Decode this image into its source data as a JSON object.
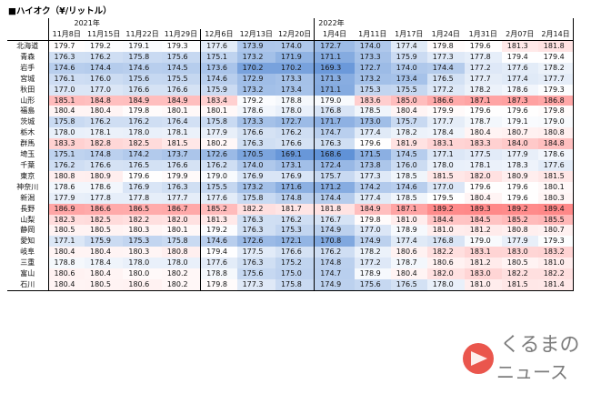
{
  "title": "■ハイオク（¥/リットル）",
  "year_labels": {
    "y2021": "2021年",
    "y2022": "2022年"
  },
  "dates": [
    "11月8日",
    "11月15日",
    "11月22日",
    "11月29日",
    "12月6日",
    "12月13日",
    "12月20日",
    "1月4日",
    "1月11日",
    "1月17日",
    "1月24日",
    "1月31日",
    "2月07日",
    "2月14日"
  ],
  "prefectures": [
    {
      "name": "北海道",
      "values": [
        179.7,
        179.2,
        179.1,
        179.3,
        177.6,
        173.9,
        174.0,
        172.7,
        174.0,
        177.4,
        179.8,
        179.6,
        181.3,
        181.8
      ]
    },
    {
      "name": "青森",
      "values": [
        176.3,
        176.2,
        175.8,
        175.6,
        175.1,
        173.2,
        171.9,
        171.1,
        173.3,
        175.9,
        177.3,
        177.8,
        179.4,
        179.4
      ]
    },
    {
      "name": "岩手",
      "values": [
        174.6,
        174.4,
        174.6,
        174.5,
        173.6,
        170.2,
        170.2,
        169.3,
        172.7,
        174.0,
        174.4,
        177.2,
        177.6,
        178.2
      ]
    },
    {
      "name": "宮城",
      "values": [
        176.1,
        176.0,
        175.6,
        175.5,
        174.6,
        172.9,
        173.3,
        171.3,
        173.2,
        173.4,
        176.5,
        177.7,
        177.4,
        177.7
      ]
    },
    {
      "name": "秋田",
      "values": [
        177.0,
        177.0,
        176.6,
        176.6,
        175.9,
        173.2,
        173.4,
        171.1,
        175.3,
        175.5,
        177.2,
        178.2,
        178.6,
        179.3
      ]
    },
    {
      "name": "山形",
      "values": [
        185.1,
        184.8,
        184.9,
        184.9,
        183.4,
        179.2,
        178.8,
        179.0,
        183.6,
        185.0,
        186.6,
        187.1,
        187.3,
        186.8
      ]
    },
    {
      "name": "福島",
      "values": [
        180.4,
        180.4,
        179.8,
        180.1,
        180.1,
        178.6,
        178.0,
        176.8,
        178.5,
        180.4,
        179.9,
        179.6,
        179.6,
        179.8
      ]
    },
    {
      "name": "茨城",
      "values": [
        175.8,
        176.2,
        176.2,
        176.4,
        175.8,
        173.3,
        172.7,
        171.7,
        173.0,
        175.7,
        177.7,
        178.7,
        179.1,
        179.0
      ]
    },
    {
      "name": "栃木",
      "values": [
        178.0,
        178.1,
        178.0,
        178.1,
        177.9,
        176.6,
        176.2,
        174.7,
        177.4,
        178.2,
        178.4,
        180.4,
        180.7,
        180.8
      ]
    },
    {
      "name": "群馬",
      "values": [
        183.3,
        182.8,
        182.5,
        181.5,
        180.2,
        176.3,
        176.6,
        176.3,
        179.6,
        181.9,
        183.1,
        183.3,
        184.0,
        184.8
      ]
    },
    {
      "name": "埼玉",
      "values": [
        175.1,
        174.8,
        174.2,
        173.7,
        172.6,
        170.5,
        169.1,
        168.6,
        171.5,
        174.5,
        177.1,
        177.5,
        177.9,
        178.6
      ]
    },
    {
      "name": "千葉",
      "values": [
        176.2,
        176.6,
        176.5,
        176.6,
        176.2,
        174.0,
        173.1,
        172.4,
        173.8,
        176.0,
        178.0,
        178.1,
        178.3,
        177.6
      ]
    },
    {
      "name": "東京",
      "values": [
        180.8,
        180.9,
        179.6,
        179.9,
        179.0,
        176.9,
        176.9,
        175.7,
        177.3,
        178.5,
        181.5,
        182.0,
        180.9,
        181.5
      ]
    },
    {
      "name": "神奈川",
      "values": [
        178.6,
        178.6,
        176.9,
        176.3,
        175.5,
        173.2,
        171.6,
        171.2,
        174.2,
        174.6,
        177.0,
        179.6,
        179.6,
        180.1
      ]
    },
    {
      "name": "新潟",
      "values": [
        177.9,
        177.8,
        177.8,
        177.7,
        177.6,
        175.8,
        174.8,
        174.4,
        177.4,
        178.5,
        179.5,
        180.4,
        179.6,
        180.3
      ]
    },
    {
      "name": "長野",
      "values": [
        186.9,
        186.6,
        186.5,
        186.7,
        185.2,
        182.2,
        181.7,
        181.8,
        184.9,
        187.1,
        189.2,
        189.3,
        189.2,
        189.4
      ]
    },
    {
      "name": "山梨",
      "values": [
        182.3,
        182.5,
        182.2,
        182.0,
        181.3,
        176.3,
        176.2,
        176.7,
        179.8,
        181.0,
        184.4,
        184.5,
        185.2,
        185.5
      ]
    },
    {
      "name": "静岡",
      "values": [
        180.5,
        180.5,
        180.3,
        180.1,
        179.2,
        176.3,
        175.3,
        174.9,
        177.0,
        178.9,
        181.0,
        181.2,
        180.8,
        180.7
      ]
    },
    {
      "name": "愛知",
      "values": [
        177.1,
        175.9,
        175.3,
        175.8,
        174.6,
        172.6,
        172.1,
        170.8,
        174.9,
        177.4,
        176.8,
        179.0,
        177.9,
        179.3
      ]
    },
    {
      "name": "岐阜",
      "values": [
        180.4,
        180.4,
        180.3,
        180.8,
        179.4,
        177.5,
        176.6,
        176.2,
        178.2,
        180.6,
        182.2,
        183.1,
        183.0,
        183.2
      ]
    },
    {
      "name": "三重",
      "values": [
        178.8,
        178.4,
        178.0,
        178.0,
        177.6,
        176.3,
        175.2,
        174.8,
        177.2,
        178.7,
        180.6,
        181.2,
        180.5,
        181.0
      ]
    },
    {
      "name": "富山",
      "values": [
        180.6,
        180.4,
        180.0,
        180.2,
        178.8,
        175.6,
        175.0,
        174.7,
        178.9,
        180.4,
        182.0,
        183.0,
        182.2,
        182.2
      ]
    },
    {
      "name": "石川",
      "values": [
        180.4,
        180.5,
        180.6,
        180.2,
        179.8,
        177.3,
        175.8,
        174.9,
        175.6,
        176.5,
        178.0,
        181.0,
        181.5,
        181.4
      ]
    }
  ],
  "logo": {
    "line1": "くるまの",
    "line2": "ニュース"
  }
}
